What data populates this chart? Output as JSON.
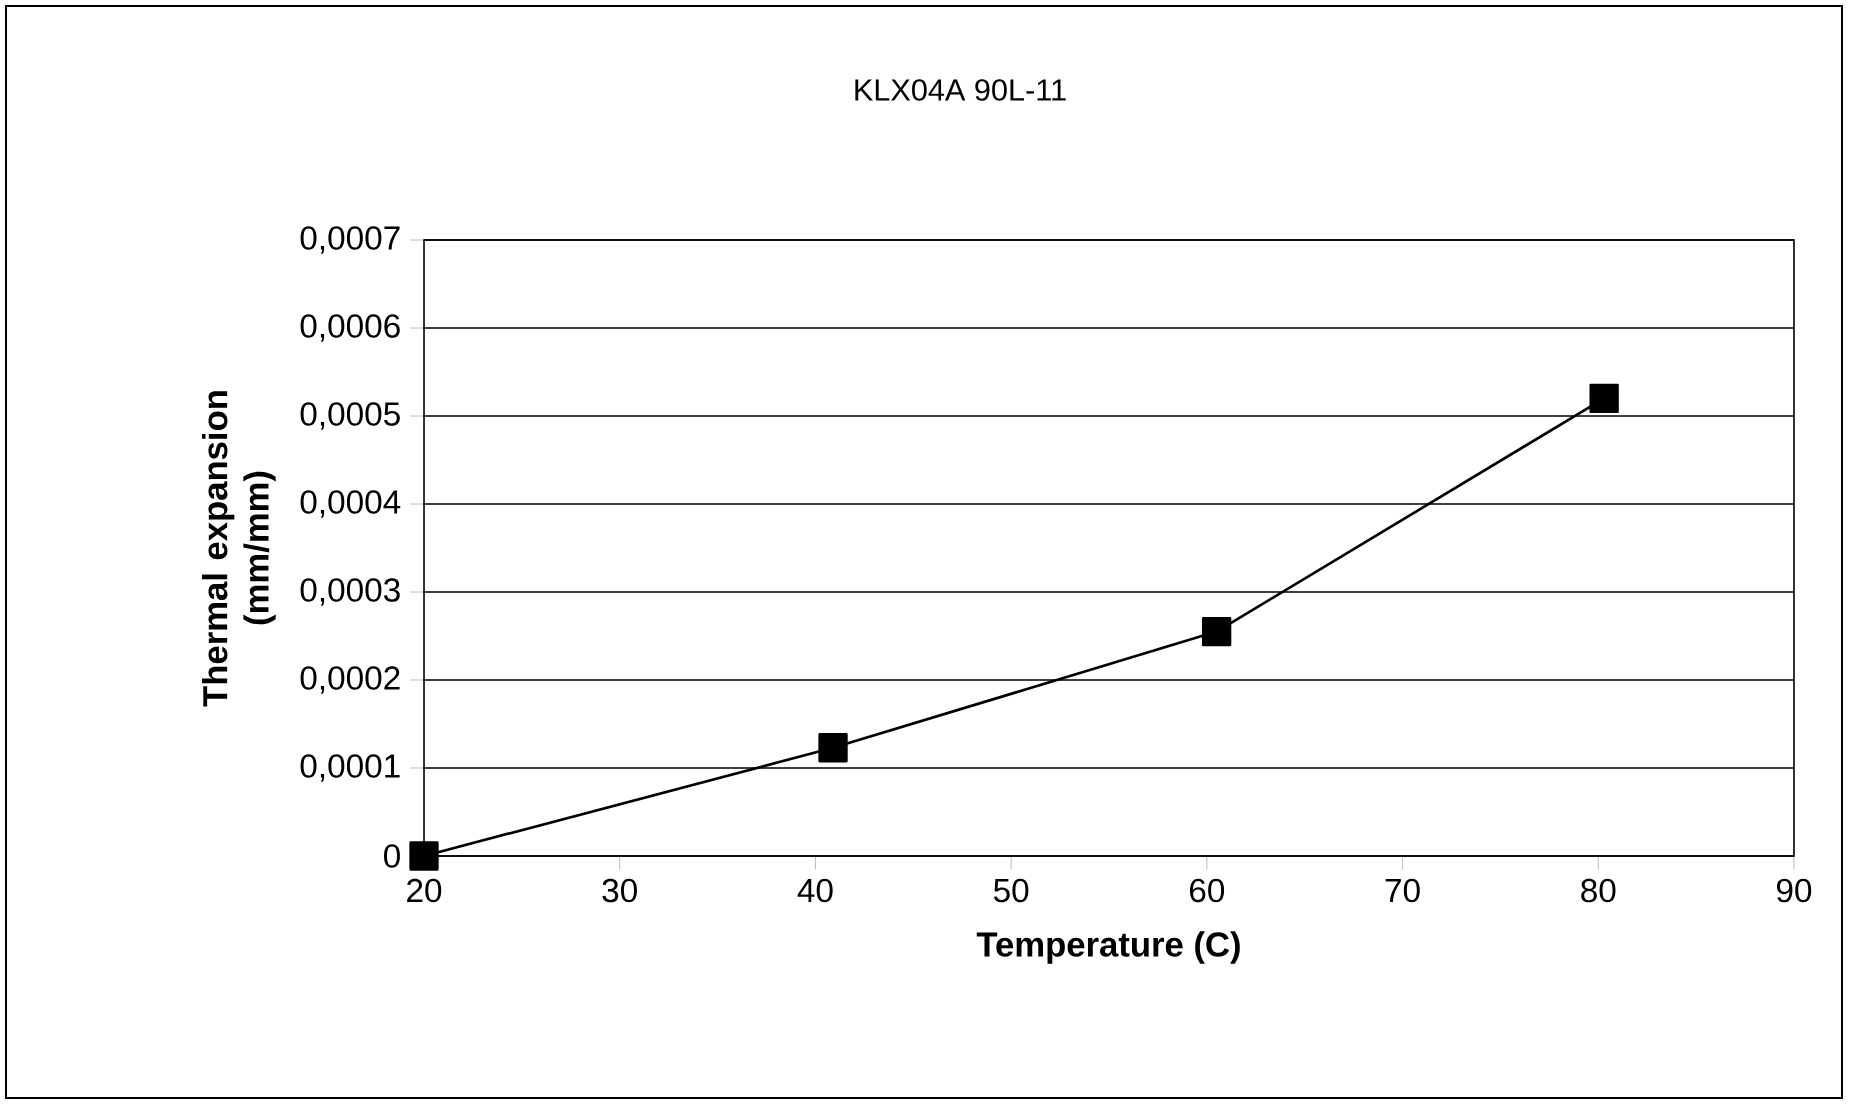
{
  "chart_data": {
    "type": "line",
    "title": "KLX04A 90L-11",
    "xlabel": "Temperature (C)",
    "ylabel": "Thermal expansion (mm/mm)",
    "x": [
      20,
      40.9,
      60.5,
      80.3
    ],
    "series": [
      {
        "color": "#000000",
        "values": [
          0,
          0.000123,
          0.000255,
          0.00052
        ]
      }
    ],
    "xlim": [
      20,
      90
    ],
    "xticks": [
      20,
      30,
      40,
      50,
      60,
      70,
      80,
      90
    ],
    "ylim": [
      0,
      0.0007
    ],
    "yticks": [
      0,
      {
        "value": 0.0001,
        "label": "0,0001"
      },
      {
        "value": 0.0002,
        "label": "0,0002"
      },
      {
        "value": 0.0003,
        "label": "0,0003"
      },
      {
        "value": 0.0004,
        "label": "0,0004"
      },
      {
        "value": 0.0005,
        "label": "0,0005"
      },
      {
        "value": 0.0006,
        "label": "0,0006"
      },
      {
        "value": 0.0007,
        "label": "0,0007"
      }
    ],
    "grid": "y",
    "marker": "square",
    "line_style": "solid"
  }
}
